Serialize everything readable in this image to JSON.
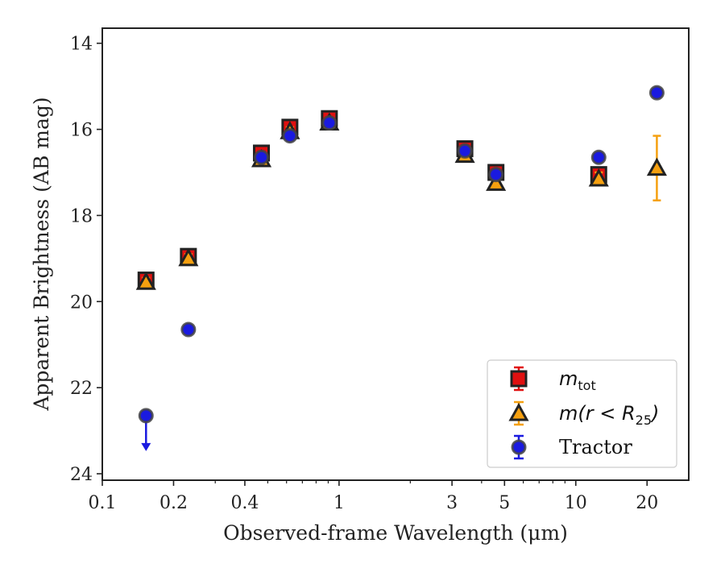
{
  "chart_data": {
    "type": "scatter",
    "xlabel": "Observed-frame Wavelength (μm)",
    "ylabel": "Apparent Brightness (AB mag)",
    "x_scale": "log",
    "xlim": [
      0.1,
      30
    ],
    "ylim": [
      24.15,
      13.65
    ],
    "y_inverted": true,
    "x_ticks": [
      0.1,
      0.2,
      0.4,
      1,
      3,
      5,
      10,
      20
    ],
    "x_tick_labels": [
      "0.1",
      "0.2",
      "0.4",
      "1",
      "3",
      "5",
      "10",
      "20"
    ],
    "y_ticks": [
      14,
      16,
      18,
      20,
      22,
      24
    ],
    "y_tick_labels": [
      "14",
      "16",
      "18",
      "20",
      "22",
      "24"
    ],
    "grid": false,
    "legend_position": "lower-right",
    "series": [
      {
        "name": "m_tot",
        "legend_main": "m",
        "legend_sub": "tot",
        "marker": "square",
        "color": "#e01010",
        "edge_color": "#222222",
        "x": [
          0.153,
          0.231,
          0.47,
          0.62,
          0.91,
          3.4,
          4.6,
          12.5
        ],
        "y": [
          19.5,
          18.95,
          16.55,
          15.95,
          15.75,
          16.45,
          17.0,
          17.05
        ],
        "yerr": [
          0.1,
          0.1,
          0.1,
          0.1,
          0.1,
          0.1,
          0.1,
          0.1
        ]
      },
      {
        "name": "m(r < R_25)",
        "legend_main": "m(r < R",
        "legend_sub": "25",
        "legend_tail": ")",
        "marker": "triangle",
        "color": "#f5a010",
        "edge_color": "#222222",
        "x": [
          0.153,
          0.231,
          0.47,
          0.62,
          0.91,
          3.4,
          4.6,
          12.5,
          22
        ],
        "y": [
          19.55,
          19.0,
          16.7,
          16.05,
          15.85,
          16.6,
          17.25,
          17.15,
          16.9
        ],
        "yerr": [
          0.1,
          0.1,
          0.1,
          0.1,
          0.1,
          0.1,
          0.1,
          0.15,
          0.75
        ]
      },
      {
        "name": "Tractor",
        "marker": "circle",
        "color": "#1a1ae0",
        "edge_color": "#444444",
        "x": [
          0.153,
          0.231,
          0.47,
          0.62,
          0.91,
          3.4,
          4.6,
          12.5,
          22
        ],
        "y": [
          22.65,
          20.65,
          16.65,
          16.15,
          15.85,
          16.5,
          17.05,
          16.65,
          15.15
        ],
        "yerr": [
          0.05,
          0.05,
          0.05,
          0.05,
          0.05,
          0.05,
          0.05,
          0.05,
          0.05
        ],
        "upper_limit": [
          true,
          false,
          false,
          false,
          false,
          false,
          false,
          false,
          false
        ]
      }
    ]
  }
}
